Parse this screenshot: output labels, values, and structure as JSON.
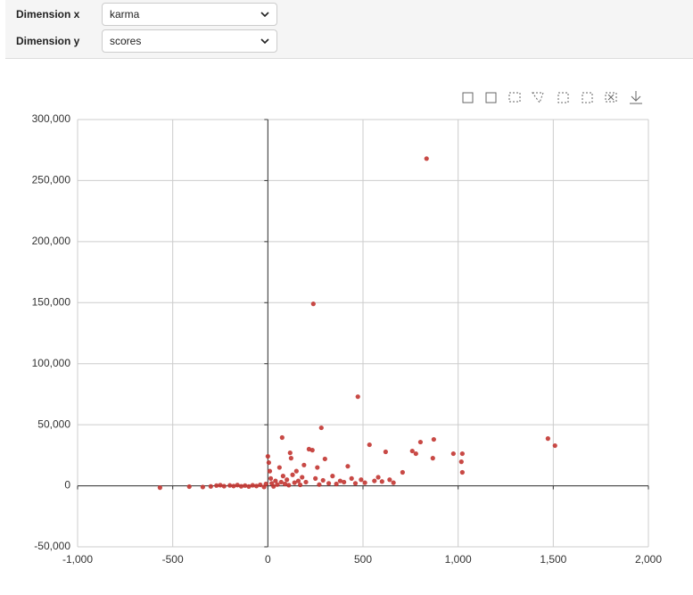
{
  "controls": [
    {
      "label": "Dimension x",
      "value": "karma"
    },
    {
      "label": "Dimension y",
      "value": "scores"
    }
  ],
  "chart_data": {
    "type": "scatter",
    "color": "#c23531",
    "grid": true,
    "xlim": [
      -1000,
      2000
    ],
    "xticks": [
      {
        "value": -1000,
        "label": "-1,000"
      },
      -500,
      0,
      500,
      {
        "value": 1000,
        "label": "1,000"
      },
      {
        "value": 1500,
        "label": "1,500"
      },
      {
        "value": 2000,
        "label": "2,000"
      }
    ],
    "ylim": [
      -50000,
      300000
    ],
    "yticks": [
      {
        "value": -50000,
        "label": "-50,000"
      },
      0,
      {
        "value": 50000,
        "label": "50,000"
      },
      {
        "value": 100000,
        "label": "100,000"
      },
      {
        "value": 150000,
        "label": "150,000"
      },
      {
        "value": 200000,
        "label": "200,000"
      },
      {
        "value": 250000,
        "label": "250,000"
      },
      {
        "value": 300000,
        "label": "300,000"
      }
    ],
    "x": [
      -567,
      -413,
      -342,
      -300,
      -270,
      -250,
      -230,
      -200,
      -180,
      -160,
      -140,
      -120,
      -100,
      -80,
      -60,
      -40,
      -20,
      -10,
      0,
      5,
      10,
      15,
      20,
      30,
      40,
      50,
      61,
      70,
      75,
      80,
      90,
      100,
      110,
      117,
      122,
      130,
      140,
      150,
      160,
      170,
      180,
      190,
      200,
      216,
      234,
      239,
      250,
      260,
      270,
      281,
      290,
      300,
      320,
      340,
      360,
      380,
      400,
      420,
      440,
      460,
      473,
      490,
      510,
      534,
      560,
      580,
      600,
      619,
      640,
      660,
      708,
      759,
      778,
      802,
      834,
      867,
      872,
      975,
      1017,
      1022,
      1022,
      1472,
      1509
    ],
    "values": [
      -1500,
      -700,
      -1000,
      -500,
      200,
      500,
      -300,
      300,
      -200,
      600,
      -400,
      200,
      -600,
      400,
      -200,
      800,
      -1000,
      1500,
      24100,
      19000,
      12000,
      6000,
      2000,
      -500,
      4000,
      1000,
      15000,
      3000,
      39500,
      8000,
      1500,
      5000,
      500,
      27000,
      22600,
      9000,
      2500,
      12000,
      4000,
      800,
      7000,
      17000,
      3000,
      30000,
      29200,
      149000,
      6000,
      15000,
      1000,
      47500,
      4500,
      22000,
      2000,
      8000,
      1500,
      4000,
      3000,
      16000,
      6000,
      2000,
      73000,
      5000,
      2500,
      33600,
      4000,
      7000,
      3500,
      27800,
      5000,
      2500,
      11000,
      28500,
      26300,
      35800,
      268000,
      22600,
      38000,
      26300,
      19700,
      26300,
      11000,
      38700,
      32900
    ]
  }
}
